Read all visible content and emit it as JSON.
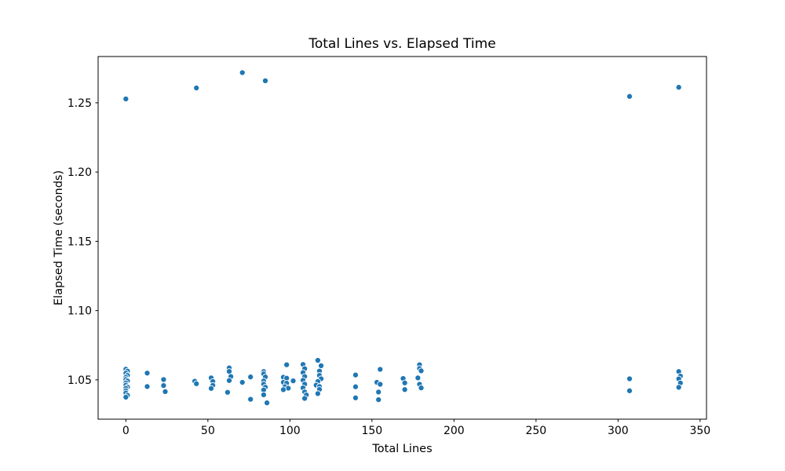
{
  "chart_data": {
    "type": "scatter",
    "title": "Total Lines vs. Elapsed Time",
    "xlabel": "Total Lines",
    "ylabel": "Elapsed Time (seconds)",
    "xlim": [
      -16.9,
      353.9
    ],
    "ylim": [
      1.0216,
      1.2834
    ],
    "xticks": [
      0,
      50,
      100,
      150,
      200,
      250,
      300,
      350
    ],
    "yticks": [
      1.05,
      1.1,
      1.15,
      1.2,
      1.25
    ],
    "ytick_decimals": 2,
    "grid": false,
    "legend_position": "none",
    "axis_color": "#000000",
    "background_color": "#ffffff",
    "marker": {
      "color": "#1f77b4",
      "edge_color": "#ffffff",
      "radius_px": 3.6
    },
    "points": [
      [
        0,
        1.2528
      ],
      [
        43,
        1.2607
      ],
      [
        71,
        1.2718
      ],
      [
        85,
        1.2659
      ],
      [
        307,
        1.2546
      ],
      [
        337,
        1.2612
      ],
      [
        0,
        1.0577
      ],
      [
        1,
        1.0563
      ],
      [
        0,
        1.0548
      ],
      [
        1,
        1.0532
      ],
      [
        0,
        1.0518
      ],
      [
        0,
        1.0503
      ],
      [
        1,
        1.0492
      ],
      [
        0,
        1.0478
      ],
      [
        0,
        1.0462
      ],
      [
        1,
        1.0447
      ],
      [
        0,
        1.0439
      ],
      [
        0,
        1.0421
      ],
      [
        0,
        1.0405
      ],
      [
        1,
        1.0388
      ],
      [
        0,
        1.0375
      ],
      [
        13,
        1.0549
      ],
      [
        13,
        1.0452
      ],
      [
        23,
        1.0502
      ],
      [
        23,
        1.0459
      ],
      [
        24,
        1.0415
      ],
      [
        42,
        1.049
      ],
      [
        43,
        1.0472
      ],
      [
        52,
        1.0514
      ],
      [
        53,
        1.0488
      ],
      [
        53,
        1.046
      ],
      [
        52,
        1.0438
      ],
      [
        63,
        1.0586
      ],
      [
        63,
        1.0561
      ],
      [
        64,
        1.0524
      ],
      [
        63,
        1.0495
      ],
      [
        62,
        1.041
      ],
      [
        71,
        1.0482
      ],
      [
        76,
        1.0521
      ],
      [
        76,
        1.036
      ],
      [
        84,
        1.056
      ],
      [
        84,
        1.0543
      ],
      [
        85,
        1.0521
      ],
      [
        84,
        1.0492
      ],
      [
        84,
        1.0469
      ],
      [
        85,
        1.0447
      ],
      [
        84,
        1.0427
      ],
      [
        84,
        1.0392
      ],
      [
        86,
        1.0334
      ],
      [
        98,
        1.0609
      ],
      [
        96,
        1.0519
      ],
      [
        98,
        1.0512
      ],
      [
        96,
        1.0482
      ],
      [
        98,
        1.0476
      ],
      [
        97,
        1.0451
      ],
      [
        99,
        1.044
      ],
      [
        96,
        1.0429
      ],
      [
        102,
        1.0493
      ],
      [
        108,
        1.0611
      ],
      [
        109,
        1.0581
      ],
      [
        108,
        1.0552
      ],
      [
        109,
        1.0524
      ],
      [
        108,
        1.0497
      ],
      [
        109,
        1.0469
      ],
      [
        108,
        1.0442
      ],
      [
        109,
        1.0413
      ],
      [
        110,
        1.0391
      ],
      [
        109,
        1.0366
      ],
      [
        117,
        1.0641
      ],
      [
        119,
        1.0602
      ],
      [
        118,
        1.0563
      ],
      [
        118,
        1.0532
      ],
      [
        119,
        1.0508
      ],
      [
        117,
        1.0488
      ],
      [
        116,
        1.0462
      ],
      [
        118,
        1.0452
      ],
      [
        118,
        1.0431
      ],
      [
        117,
        1.0401
      ],
      [
        140,
        1.0535
      ],
      [
        140,
        1.045
      ],
      [
        140,
        1.037
      ],
      [
        155,
        1.0576
      ],
      [
        153,
        1.0482
      ],
      [
        155,
        1.0468
      ],
      [
        154,
        1.0412
      ],
      [
        154,
        1.0357
      ],
      [
        169,
        1.051
      ],
      [
        170,
        1.0478
      ],
      [
        170,
        1.043
      ],
      [
        179,
        1.0609
      ],
      [
        179,
        1.0582
      ],
      [
        180,
        1.0565
      ],
      [
        178,
        1.0514
      ],
      [
        179,
        1.0468
      ],
      [
        180,
        1.0442
      ],
      [
        307,
        1.0508
      ],
      [
        307,
        1.0421
      ],
      [
        337,
        1.056
      ],
      [
        338,
        1.0527
      ],
      [
        337,
        1.0507
      ],
      [
        338,
        1.0477
      ],
      [
        337,
        1.0446
      ]
    ]
  }
}
